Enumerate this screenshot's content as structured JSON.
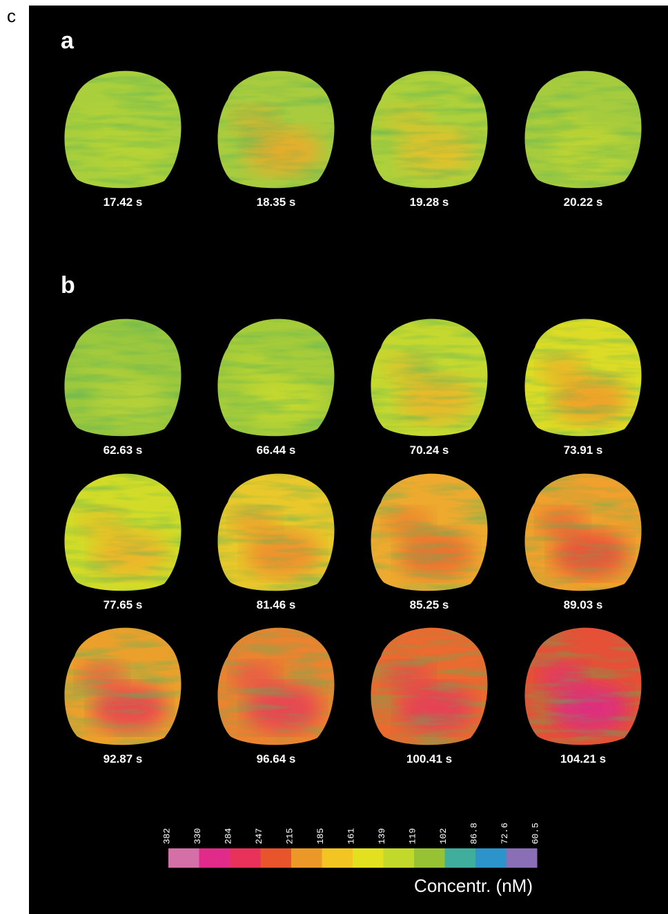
{
  "figure_label": "c",
  "sections": [
    {
      "label": "a",
      "frames": [
        "17.42 s",
        "18.35 s",
        "19.28 s",
        "20.22 s"
      ]
    },
    {
      "label": "b",
      "frames": [
        "62.63 s",
        "66.44 s",
        "70.24 s",
        "73.91 s",
        "77.65 s",
        "81.46 s",
        "85.25 s",
        "89.03 s",
        "92.87 s",
        "96.64 s",
        "100.41 s",
        "104.21 s"
      ]
    }
  ],
  "colorbar": {
    "ticks": [
      "382",
      "330",
      "284",
      "247",
      "215",
      "185",
      "161",
      "139",
      "119",
      "102",
      "86.8",
      "72.6",
      "60.5"
    ],
    "colors": [
      "#d56fa8",
      "#e02b8a",
      "#e8325a",
      "#e8542c",
      "#eb9828",
      "#f2c522",
      "#e3e020",
      "#c2d82a",
      "#96c233",
      "#3fae9c",
      "#2d94cb",
      "#8a6fb6"
    ],
    "label": "Concentr. (nM)"
  }
}
